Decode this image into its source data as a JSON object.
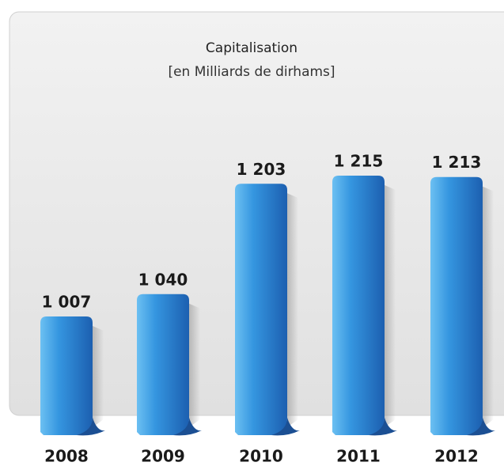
{
  "chart_data": {
    "type": "bar",
    "title": "Capitalisation",
    "subtitle": "[en Milliards de dirhams]",
    "categories": [
      "2008",
      "2009",
      "2010",
      "2011",
      "2012"
    ],
    "values": [
      1007,
      1040,
      1203,
      1215,
      1213
    ],
    "value_labels": [
      "1 007",
      "1 040",
      "1 203",
      "1 215",
      "1 213"
    ],
    "color": "#2f86d6"
  }
}
